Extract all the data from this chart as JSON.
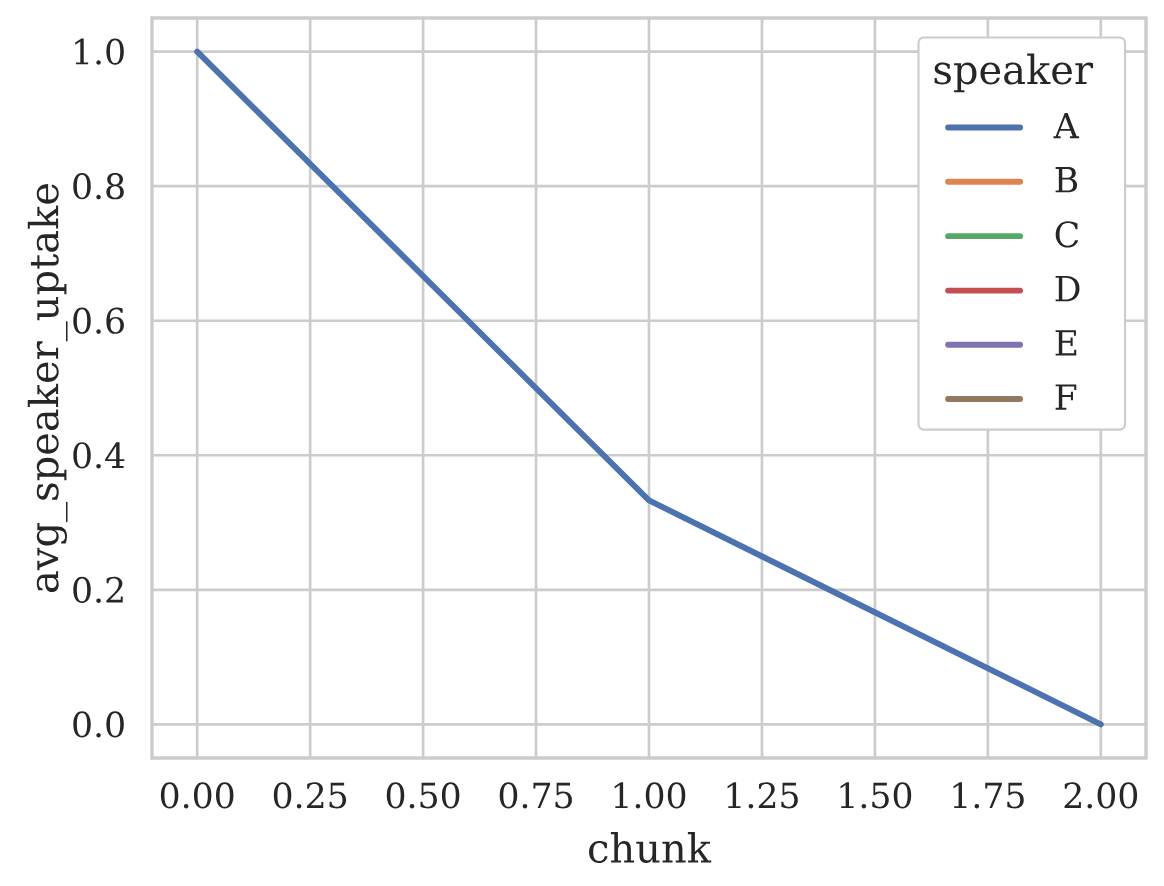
{
  "chart_data": {
    "type": "line",
    "xlabel": "chunk",
    "ylabel": "avg_speaker_uptake",
    "legend_title": "speaker",
    "x": [
      0,
      1,
      2
    ],
    "series": [
      {
        "name": "A",
        "color": "#4c72b0",
        "values": [
          1.0,
          0.333,
          0.0
        ]
      },
      {
        "name": "B",
        "color": "#dd8452",
        "values": [
          null,
          null,
          null
        ]
      },
      {
        "name": "C",
        "color": "#55a868",
        "values": [
          null,
          null,
          null
        ]
      },
      {
        "name": "D",
        "color": "#c44e52",
        "values": [
          null,
          null,
          null
        ]
      },
      {
        "name": "E",
        "color": "#8172b3",
        "values": [
          null,
          null,
          null
        ]
      },
      {
        "name": "F",
        "color": "#937860",
        "values": [
          null,
          null,
          null
        ]
      }
    ],
    "xlim": [
      -0.1,
      2.1
    ],
    "ylim": [
      -0.05,
      1.05
    ],
    "xticks": [
      {
        "value": 0,
        "label": "0.00"
      },
      {
        "value": 0.25,
        "label": "0.25"
      },
      {
        "value": 0.5,
        "label": "0.50"
      },
      {
        "value": 0.75,
        "label": "0.75"
      },
      {
        "value": 1,
        "label": "1.00"
      },
      {
        "value": 1.25,
        "label": "1.25"
      },
      {
        "value": 1.5,
        "label": "1.50"
      },
      {
        "value": 1.75,
        "label": "1.75"
      },
      {
        "value": 2,
        "label": "2.00"
      }
    ],
    "yticks": [
      {
        "value": 0,
        "label": "0.0"
      },
      {
        "value": 0.2,
        "label": "0.2"
      },
      {
        "value": 0.4,
        "label": "0.4"
      },
      {
        "value": 0.6,
        "label": "0.6"
      },
      {
        "value": 0.8,
        "label": "0.8"
      },
      {
        "value": 1,
        "label": "1.0"
      }
    ],
    "grid": true,
    "legend": "top right",
    "line_style": "solid"
  }
}
